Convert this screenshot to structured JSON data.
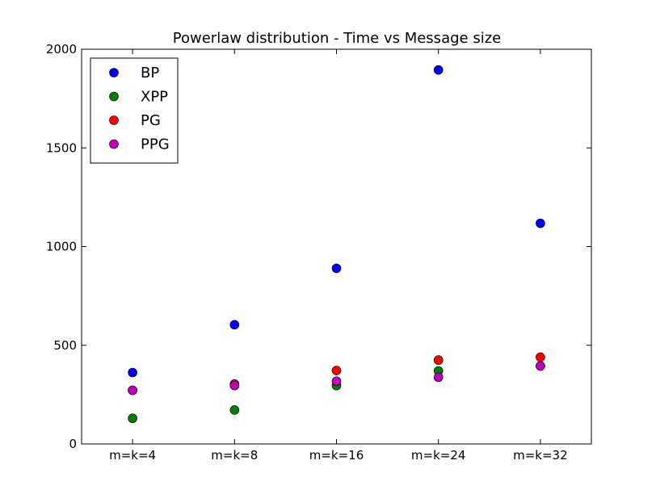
{
  "chart_data": {
    "type": "scatter",
    "title": "Powerlaw distribution - Time vs Message size",
    "xlabel": "",
    "ylabel": "",
    "categories": [
      "m=k=4",
      "m=k=8",
      "m=k=16",
      "m=k=24",
      "m=k=32"
    ],
    "ylim": [
      0,
      2000
    ],
    "yticks": [
      0,
      500,
      1000,
      1500,
      2000
    ],
    "grid": false,
    "legend_position": "top-left",
    "series": [
      {
        "name": "BP",
        "color": "#0000ff",
        "values": [
          362,
          604,
          890,
          1895,
          1118
        ]
      },
      {
        "name": "XPP",
        "color": "#008000",
        "values": [
          130,
          172,
          296,
          370,
          395
        ]
      },
      {
        "name": "PG",
        "color": "#ff0000",
        "values": [
          272,
          304,
          372,
          425,
          440
        ]
      },
      {
        "name": "PPG",
        "color": "#bf00bf",
        "values": [
          272,
          296,
          318,
          338,
          395
        ]
      }
    ]
  }
}
